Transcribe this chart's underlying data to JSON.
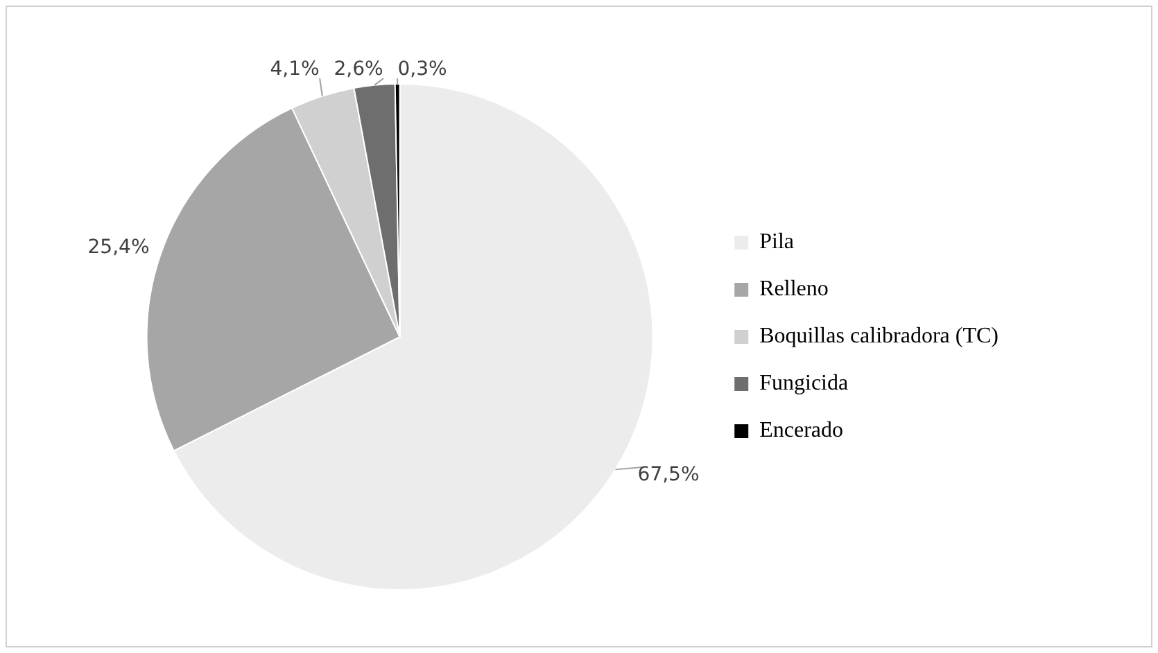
{
  "chart_data": {
    "type": "pie",
    "categories": [
      "Pila",
      "Relleno",
      "Boquillas calibradora (TC)",
      "Fungicida",
      "Encerado"
    ],
    "values": [
      67.5,
      25.4,
      4.1,
      2.6,
      0.3
    ],
    "colors": [
      "#ececec",
      "#a6a6a6",
      "#d0d0d0",
      "#6e6e6e",
      "#000000"
    ],
    "value_labels": [
      "67,5%",
      "25,4%",
      "4,1%",
      "2,6%",
      "0,3%"
    ],
    "legend": "right"
  }
}
